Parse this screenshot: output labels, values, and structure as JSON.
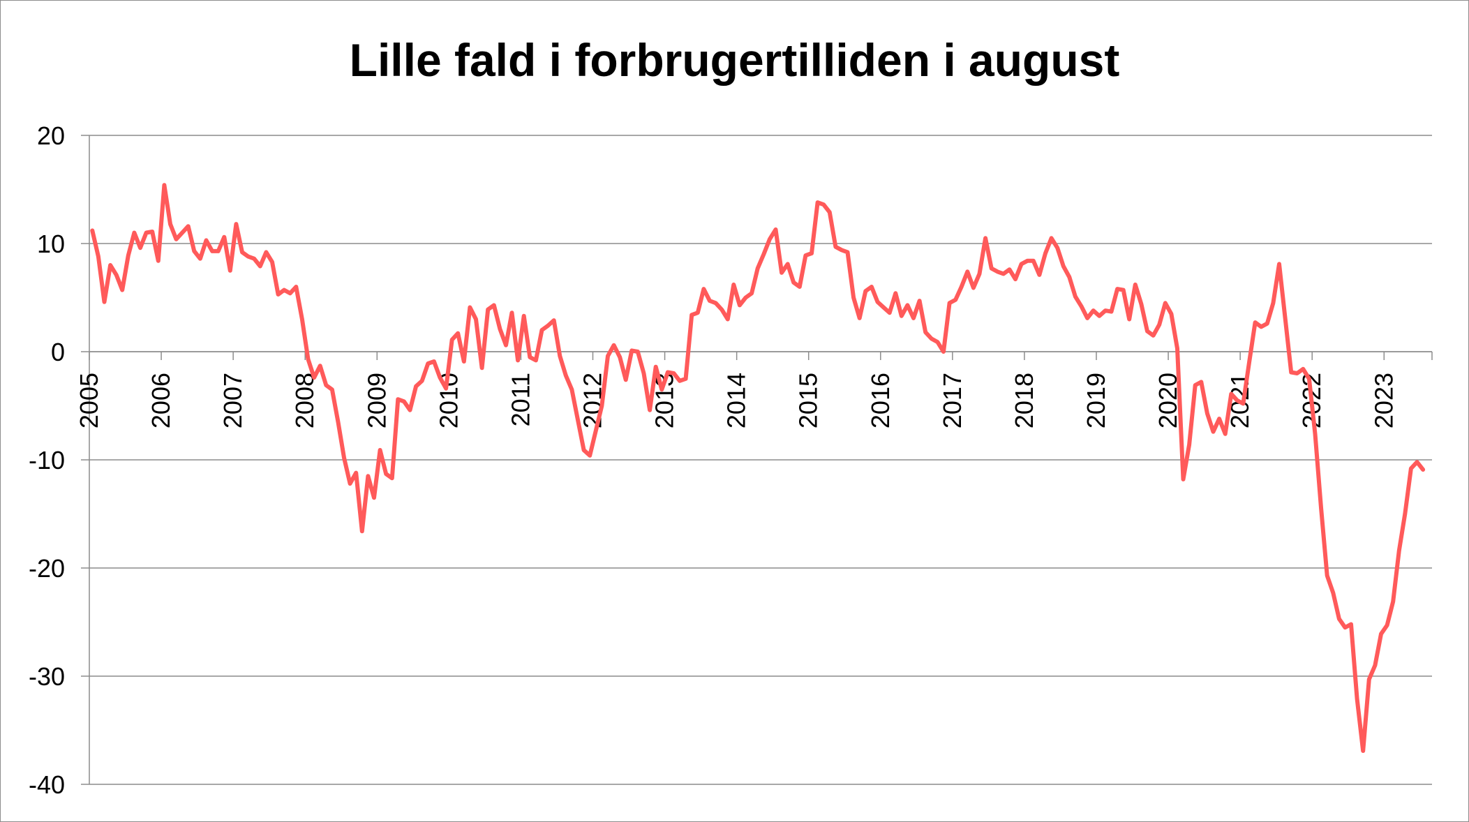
{
  "chart_data": {
    "type": "line",
    "title": "Lille fald i forbrugertilliden i august",
    "xlabel": "",
    "ylabel": "",
    "ylim": [
      -40,
      20
    ],
    "yticks": [
      "20",
      "10",
      "0",
      "-10",
      "-20",
      "-30",
      "-40"
    ],
    "ytick_values": [
      20,
      10,
      0,
      -10,
      -20,
      -30,
      -40
    ],
    "xticks": [
      "2005",
      "2006",
      "2007",
      "2008",
      "2009",
      "2010",
      "2011",
      "2012",
      "2013",
      "2014",
      "2015",
      "2016",
      "2017",
      "2018",
      "2019",
      "2020",
      "2021",
      "2022",
      "2023"
    ],
    "x_start": "2005-01",
    "x_end": "2023-08",
    "grid": true,
    "legend": "none",
    "series": [
      {
        "color": "#ff5a5a",
        "values": [
          11.2,
          8.8,
          4.6,
          8.0,
          7.1,
          5.7,
          8.9,
          11.0,
          9.6,
          11.0,
          11.1,
          8.4,
          15.4,
          11.8,
          10.4,
          11.0,
          11.6,
          9.3,
          8.6,
          10.3,
          9.3,
          9.3,
          10.6,
          7.5,
          11.8,
          9.2,
          8.8,
          8.6,
          7.9,
          9.2,
          8.3,
          5.3,
          5.7,
          5.4,
          6.0,
          3.0,
          -0.7,
          -2.4,
          -1.3,
          -3.1,
          -3.5,
          -6.5,
          -9.8,
          -12.2,
          -11.2,
          -16.6,
          -11.5,
          -13.5,
          -9.1,
          -11.3,
          -11.7,
          -4.4,
          -4.6,
          -5.4,
          -3.2,
          -2.7,
          -1.1,
          -0.9,
          -2.4,
          -3.4,
          1.1,
          1.7,
          -0.9,
          4.1,
          3.0,
          -1.5,
          3.9,
          4.3,
          2.1,
          0.6,
          3.6,
          -0.8,
          3.3,
          -0.5,
          -0.8,
          2.0,
          2.4,
          2.9,
          -0.4,
          -2.2,
          -3.5,
          -6.3,
          -9.1,
          -9.6,
          -7.3,
          -5.0,
          -0.4,
          0.6,
          -0.5,
          -2.6,
          0.1,
          0.0,
          -2.0,
          -5.4,
          -1.4,
          -3.5,
          -1.9,
          -2.0,
          -2.7,
          -2.5,
          3.4,
          3.6,
          5.8,
          4.7,
          4.5,
          3.9,
          3.0,
          6.2,
          4.3,
          5.0,
          5.4,
          7.7,
          9.0,
          10.4,
          11.3,
          7.3,
          8.1,
          6.4,
          6.0,
          8.9,
          9.1,
          13.8,
          13.6,
          12.9,
          9.7,
          9.4,
          9.2,
          5.0,
          3.1,
          5.6,
          6.0,
          4.6,
          4.1,
          3.6,
          5.4,
          3.3,
          4.3,
          3.1,
          4.7,
          1.8,
          1.2,
          0.9,
          0.0,
          4.5,
          4.8,
          6.0,
          7.4,
          5.9,
          7.2,
          10.5,
          7.7,
          7.4,
          7.2,
          7.6,
          6.7,
          8.1,
          8.4,
          8.4,
          7.1,
          9.1,
          10.5,
          9.6,
          7.9,
          6.9,
          5.1,
          4.2,
          3.1,
          3.8,
          3.3,
          3.8,
          3.7,
          5.8,
          5.7,
          3.0,
          6.2,
          4.4,
          1.9,
          1.5,
          2.5,
          4.5,
          3.5,
          0.3,
          -11.8,
          -8.6,
          -3.1,
          -2.8,
          -5.7,
          -7.4,
          -6.2,
          -7.6,
          -3.9,
          -4.5,
          -4.8,
          -1.0,
          2.7,
          2.3,
          2.6,
          4.5,
          8.1,
          3.1,
          -1.9,
          -2.0,
          -1.6,
          -2.5,
          -7.6,
          -14.5,
          -20.7,
          -22.3,
          -24.7,
          -25.5,
          -25.2,
          -32.1,
          -36.9,
          -30.3,
          -29.0,
          -26.1,
          -25.3,
          -23.1,
          -18.4,
          -15.0,
          -10.8,
          -10.2,
          -10.9
        ]
      }
    ]
  }
}
